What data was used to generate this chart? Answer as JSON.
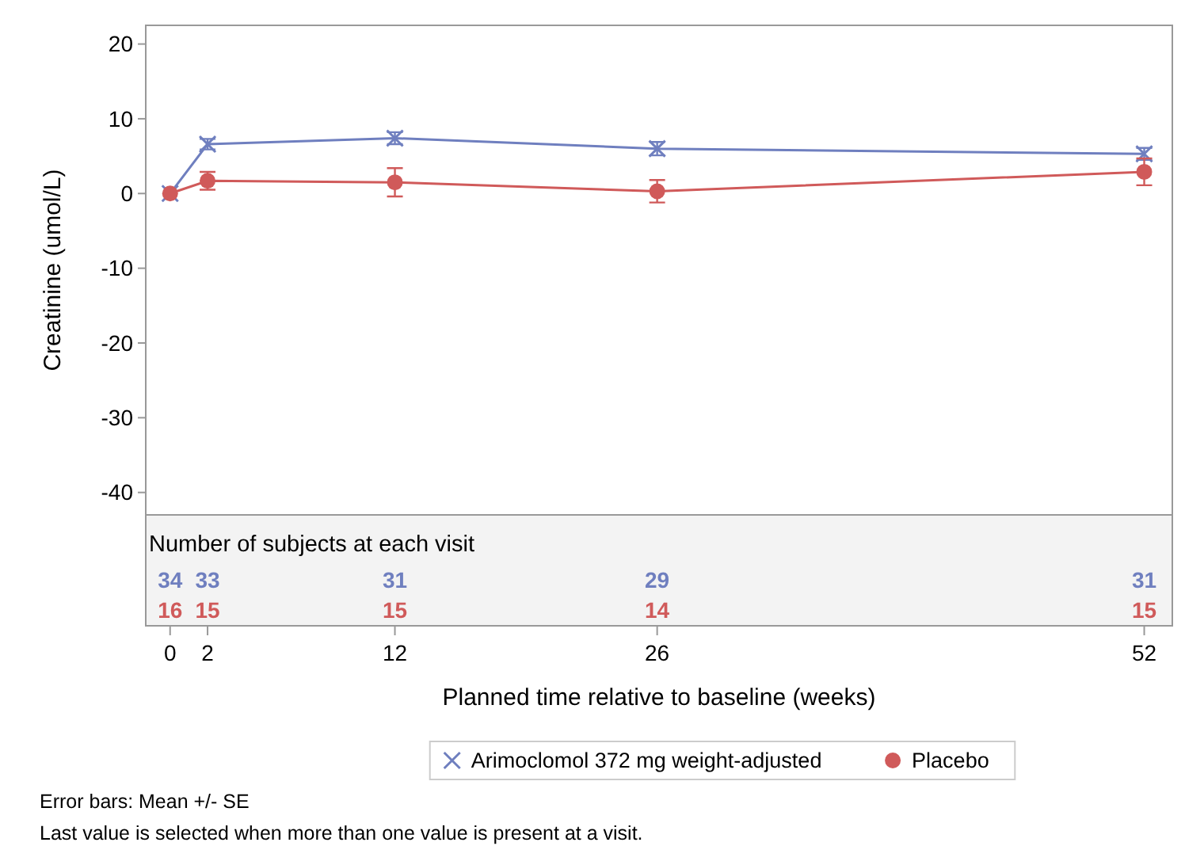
{
  "chart_data": {
    "type": "line",
    "xlabel": "Planned time relative to baseline (weeks)",
    "ylabel": "Creatinine (umol/L)",
    "x": [
      0,
      2,
      12,
      26,
      52
    ],
    "xlim": [
      -1.3,
      53.5
    ],
    "xticks": [
      0,
      2,
      12,
      26,
      52
    ],
    "ylim": [
      -43,
      22.5
    ],
    "yticks": [
      -40,
      -30,
      -20,
      -10,
      0,
      10,
      20
    ],
    "grid": false,
    "legend": "bottom",
    "line_style": "solid",
    "series": [
      {
        "name": "Arimoclomol 372 mg weight-adjusted",
        "color": "#6f7fbf",
        "marker": "cross",
        "values": [
          0,
          6.6,
          7.4,
          6.0,
          5.3
        ],
        "errors": [
          null,
          0.7,
          0.8,
          0.9,
          0.8
        ]
      },
      {
        "name": "Placebo",
        "color": "#d05a5a",
        "marker": "circle",
        "values": [
          0,
          1.7,
          1.5,
          0.3,
          2.9
        ],
        "errors": [
          null,
          1.2,
          1.9,
          1.5,
          1.8
        ]
      }
    ],
    "annotations": [
      "Number of subjects at each visit",
      "34",
      "33",
      "31",
      "29",
      "31",
      "16",
      "15",
      "15",
      "14",
      "15",
      "Error bars: Mean +/- SE",
      "Last value is selected when more than one value is present at a visit."
    ]
  }
}
